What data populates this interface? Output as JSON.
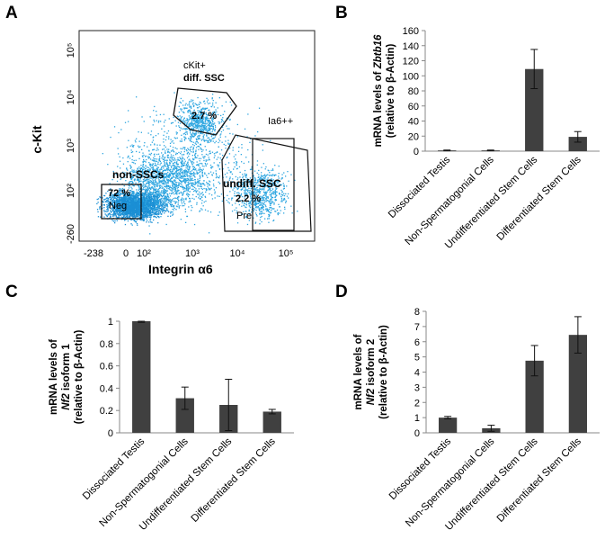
{
  "panel_letters": [
    "A",
    "B",
    "C",
    "D"
  ],
  "colors": {
    "bar": "#404040",
    "dots": "#2ea6e0",
    "dots_dense": "#1b8fd4"
  },
  "chart_data": [
    {
      "panel": "A",
      "type": "scatter",
      "xlabel": "Integrin α6",
      "ylabel": "c-Kit",
      "x_ticks": [
        "-238",
        "0",
        "10²",
        "10³",
        "10⁴",
        "10⁵"
      ],
      "y_ticks": [
        "-260",
        "10²",
        "10³",
        "10⁴",
        "10⁵"
      ],
      "gates": [
        {
          "label_top": "cKit+",
          "label": "diff. SSC",
          "value": "2.7 %"
        },
        {
          "label": "non-SSCs",
          "value": "72 %",
          "sub": "Neg"
        },
        {
          "label": "undiff. SSC",
          "value": "2.2 %",
          "sub": "Pre"
        },
        {
          "label": "Ia6++"
        }
      ]
    },
    {
      "panel": "B",
      "type": "bar",
      "ylabel_html": [
        "mRNA levels of ",
        "Zbtb16",
        "(relative  to β-Actin)"
      ],
      "categories": [
        "Dissociated Testis",
        "Non-Spermatogonial Cells",
        "Undifferentiated Stem Cells",
        "Differentiated Stem Cells"
      ],
      "values": [
        1,
        1,
        109,
        19
      ],
      "errors": [
        0.5,
        0.5,
        26,
        7
      ],
      "ylim": [
        0,
        160
      ],
      "yticks": [
        0,
        20,
        40,
        60,
        80,
        100,
        120,
        140,
        160
      ]
    },
    {
      "panel": "C",
      "type": "bar",
      "ylabel_html": [
        "mRNA levels of",
        "Nf2",
        "isoform 1",
        "(relative to β-Actin)"
      ],
      "categories": [
        "Dissociated Testis",
        "Non-Spermatogonial Cells",
        "Undifferentiated Stem Cells",
        "Differentiated Stem Cells"
      ],
      "values": [
        1.0,
        0.31,
        0.25,
        0.19
      ],
      "errors": [
        0.01,
        0.1,
        0.23,
        0.02
      ],
      "ylim": [
        0,
        1
      ],
      "yticks": [
        0,
        0.2,
        0.4,
        0.6,
        0.8,
        1
      ],
      "ytick_labels": [
        "0",
        "0.2",
        "0.4",
        "0.6",
        "0.8",
        "1"
      ]
    },
    {
      "panel": "D",
      "type": "bar",
      "ylabel_html": [
        "mRNA levels of",
        "Nf2",
        "isoform 2",
        "(relative to β-Actin)"
      ],
      "categories": [
        "Dissociated Testis",
        "Non-Spermatogonial Cells",
        "Undifferentiated Stem Cells",
        "Differentiated Stem Cells"
      ],
      "values": [
        1.0,
        0.3,
        4.75,
        6.45
      ],
      "errors": [
        0.08,
        0.2,
        1.0,
        1.2
      ],
      "ylim": [
        0,
        8
      ],
      "yticks": [
        0,
        1,
        2,
        3,
        4,
        5,
        6,
        7,
        8
      ]
    }
  ]
}
